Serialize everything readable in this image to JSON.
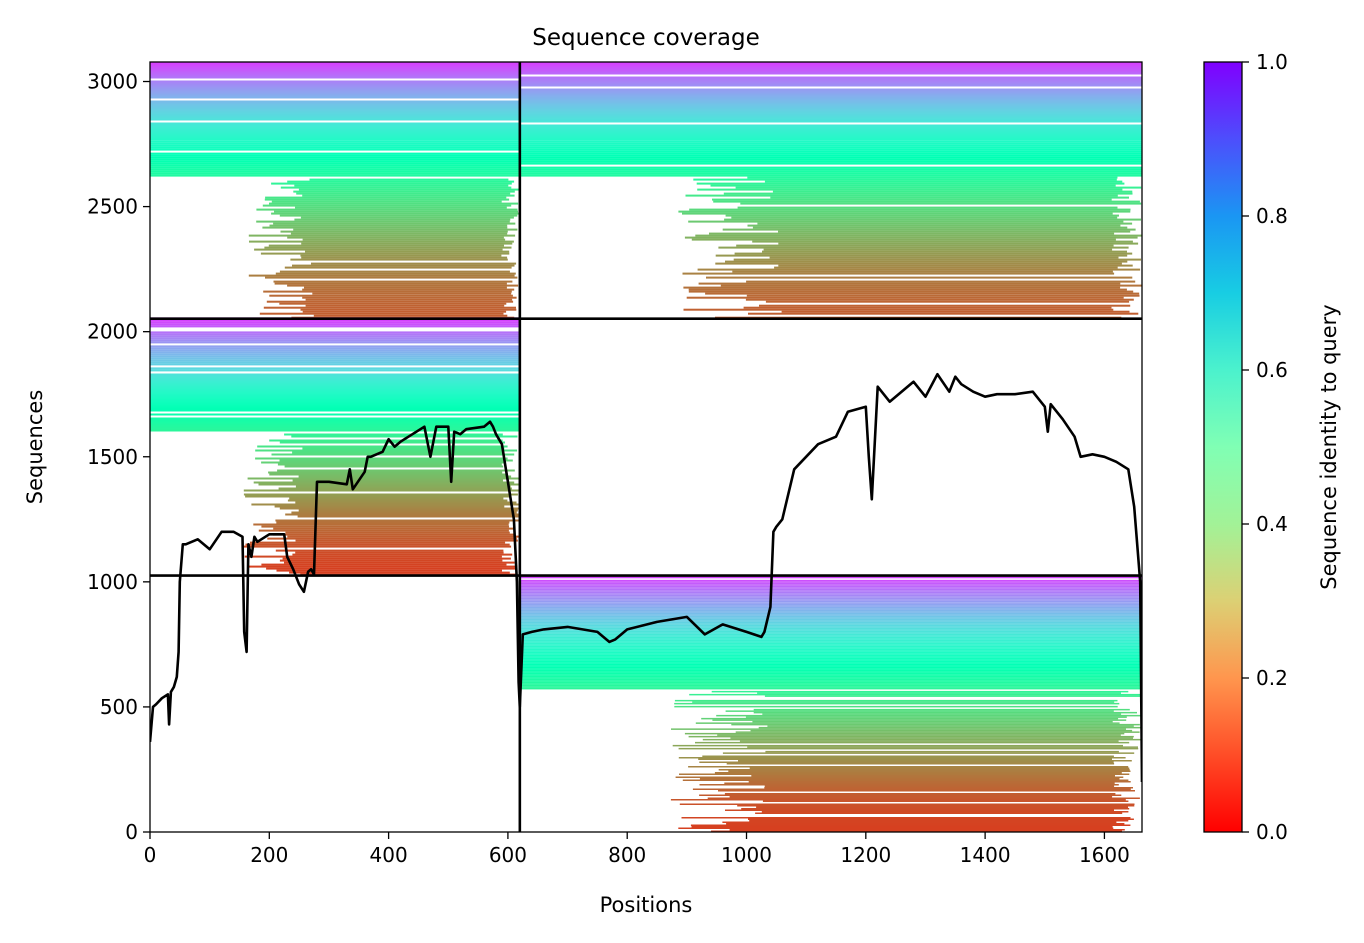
{
  "chart_data": {
    "type": "heatmap",
    "title": "Sequence coverage",
    "xlabel": "Positions",
    "ylabel": "Sequences",
    "colorbar_label": "Sequence identity to query",
    "colormap": "rainbow_r",
    "colorbar_range": [
      0.0,
      1.0
    ],
    "colorbar_ticks": [
      "0.0",
      "0.2",
      "0.4",
      "0.6",
      "0.8",
      "1.0"
    ],
    "xlim": [
      0,
      1663
    ],
    "ylim": [
      0,
      3078
    ],
    "x_ticks": [
      0,
      200,
      400,
      600,
      800,
      1000,
      1200,
      1400,
      1600
    ],
    "y_ticks": [
      0,
      500,
      1000,
      1500,
      2000,
      2500,
      3000
    ],
    "grid": false,
    "chain_boundaries": {
      "x": [
        620
      ],
      "y": [
        1025,
        2052
      ]
    },
    "coverage_line": {
      "color": "#000000",
      "x": [
        0,
        5,
        10,
        20,
        30,
        32,
        35,
        40,
        45,
        48,
        50,
        55,
        60,
        80,
        100,
        120,
        140,
        155,
        158,
        162,
        165,
        170,
        175,
        180,
        200,
        225,
        230,
        240,
        250,
        258,
        265,
        270,
        275,
        280,
        300,
        330,
        335,
        340,
        360,
        365,
        370,
        390,
        400,
        410,
        420,
        460,
        470,
        480,
        500,
        505,
        510,
        520,
        530,
        560,
        570,
        575,
        580,
        590,
        600,
        610,
        615,
        618,
        620,
        625,
        640,
        660,
        700,
        750,
        770,
        780,
        800,
        850,
        900,
        930,
        960,
        1000,
        1025,
        1030,
        1040,
        1045,
        1050,
        1060,
        1080,
        1120,
        1150,
        1170,
        1200,
        1205,
        1210,
        1220,
        1240,
        1280,
        1300,
        1320,
        1340,
        1350,
        1360,
        1380,
        1400,
        1420,
        1450,
        1480,
        1500,
        1505,
        1510,
        1530,
        1550,
        1560,
        1580,
        1600,
        1620,
        1640,
        1650,
        1660,
        1663
      ],
      "y": [
        360,
        500,
        510,
        535,
        550,
        430,
        560,
        580,
        620,
        720,
        1000,
        1150,
        1150,
        1170,
        1130,
        1200,
        1200,
        1180,
        800,
        720,
        1150,
        1100,
        1180,
        1160,
        1190,
        1190,
        1100,
        1050,
        990,
        960,
        1040,
        1050,
        1030,
        1400,
        1400,
        1390,
        1450,
        1370,
        1440,
        1500,
        1500,
        1520,
        1570,
        1540,
        1560,
        1620,
        1500,
        1620,
        1620,
        1400,
        1600,
        1590,
        1610,
        1620,
        1640,
        1620,
        1590,
        1550,
        1400,
        1250,
        1000,
        600,
        500,
        790,
        800,
        810,
        820,
        800,
        760,
        770,
        810,
        840,
        860,
        790,
        830,
        800,
        780,
        800,
        900,
        1200,
        1220,
        1250,
        1450,
        1550,
        1580,
        1680,
        1700,
        1500,
        1330,
        1780,
        1720,
        1800,
        1740,
        1830,
        1760,
        1820,
        1790,
        1760,
        1740,
        1750,
        1750,
        1760,
        1700,
        1600,
        1710,
        1650,
        1580,
        1500,
        1510,
        1500,
        1480,
        1450,
        1300,
        1000,
        200
      ]
    }
  }
}
